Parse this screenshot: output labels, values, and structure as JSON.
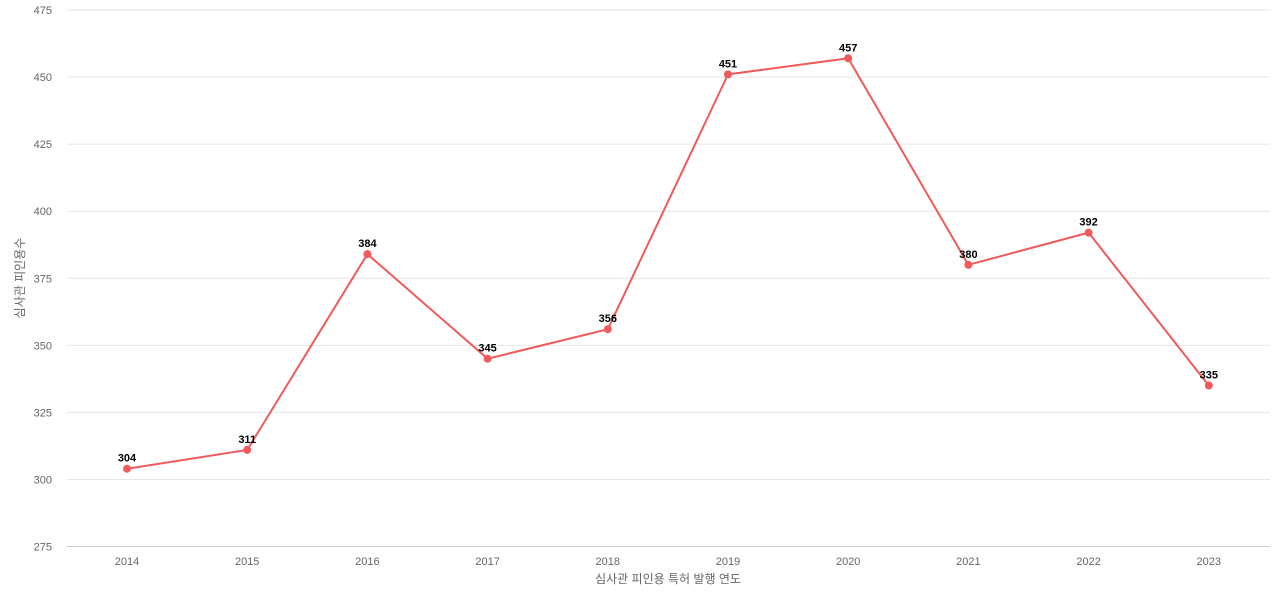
{
  "chart_data": {
    "type": "line",
    "title": "",
    "xlabel": "심사관 피인용 특허 발행 연도",
    "ylabel": "심사관 피인용수",
    "categories": [
      "2014",
      "2015",
      "2016",
      "2017",
      "2018",
      "2019",
      "2020",
      "2021",
      "2022",
      "2023"
    ],
    "series": [
      {
        "values": [
          304,
          311,
          384,
          345,
          356,
          451,
          457,
          380,
          392,
          335
        ],
        "color": "#f05a5a"
      }
    ],
    "ylim": [
      275,
      475
    ],
    "yticks": [
      275,
      300,
      325,
      350,
      375,
      400,
      425,
      450,
      475
    ],
    "grid": true,
    "legend": "none",
    "data_labels": true
  }
}
